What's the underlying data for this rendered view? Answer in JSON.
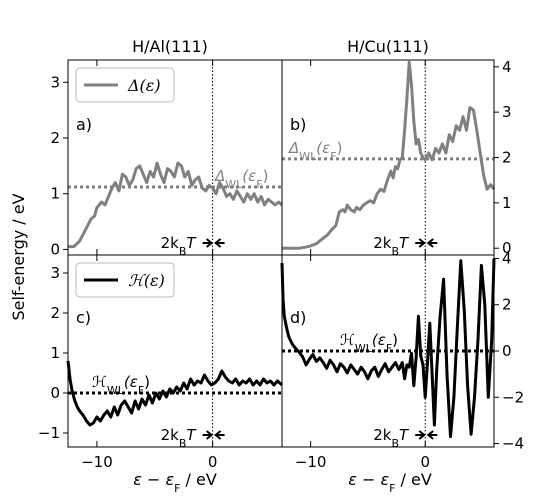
{
  "figure": {
    "ylabel": "Self-energy / eV",
    "xlabel": "ε − ε",
    "xlabel_sub": "F",
    "xlabel_unit": " / eV",
    "col_titles": [
      "H/Al(111)",
      "H/Cu(111)"
    ]
  },
  "chart_data": [
    {
      "type": "line",
      "panel_label": "a)",
      "title": "H/Al(111)",
      "xlim": [
        -12.5,
        6.0
      ],
      "ylim": [
        -0.1,
        3.4
      ],
      "xticks": [
        -10,
        0
      ],
      "yticks": [
        0,
        1,
        2,
        3
      ],
      "ytick_side": "left",
      "series": [
        {
          "name": "Δ(ε)",
          "color": "#808080",
          "x": [
            -12.5,
            -12.0,
            -11.5,
            -11.0,
            -10.5,
            -10.2,
            -10.0,
            -9.6,
            -9.3,
            -9.0,
            -8.7,
            -8.4,
            -8.1,
            -7.8,
            -7.5,
            -7.2,
            -6.9,
            -6.6,
            -6.3,
            -6.0,
            -5.7,
            -5.4,
            -5.1,
            -4.8,
            -4.5,
            -4.2,
            -3.9,
            -3.6,
            -3.3,
            -3.0,
            -2.7,
            -2.4,
            -2.1,
            -1.8,
            -1.5,
            -1.2,
            -0.9,
            -0.6,
            -0.3,
            0.0,
            0.3,
            0.6,
            0.9,
            1.2,
            1.5,
            1.8,
            2.1,
            2.4,
            2.7,
            3.0,
            3.3,
            3.6,
            3.9,
            4.2,
            4.5,
            4.8,
            5.1,
            5.4,
            5.7,
            6.0
          ],
          "y": [
            0.05,
            0.05,
            0.15,
            0.35,
            0.55,
            0.6,
            0.75,
            0.85,
            0.8,
            0.95,
            1.1,
            1.2,
            1.05,
            1.35,
            1.3,
            1.15,
            1.25,
            1.45,
            1.5,
            1.35,
            1.2,
            1.4,
            1.3,
            1.55,
            1.35,
            1.2,
            1.45,
            1.4,
            1.3,
            1.55,
            1.5,
            1.3,
            1.4,
            1.15,
            1.25,
            1.3,
            1.1,
            1.05,
            1.15,
            1.1,
            1.0,
            1.2,
            1.1,
            0.95,
            1.0,
            0.9,
            1.05,
            0.95,
            0.85,
            1.0,
            0.9,
            1.0,
            0.85,
            0.95,
            0.8,
            0.9,
            0.85,
            0.8,
            0.85,
            0.8
          ]
        }
      ],
      "hline": {
        "y": 1.12,
        "label": "Δ",
        "label_sub": "WL",
        "label_arg": "(ε",
        "label_arg_sub": "F",
        "label_close": ")",
        "color": "#808080"
      },
      "legend": {
        "label": "Δ(ε)",
        "placement": "upper-left"
      },
      "kbt": {
        "label": "2k",
        "sub": "B",
        "rest": "T"
      }
    },
    {
      "type": "line",
      "panel_label": "b)",
      "title": "H/Cu(111)",
      "xlim": [
        -12.5,
        6.0
      ],
      "ylim": [
        -0.15,
        4.15
      ],
      "xticks": [
        -10,
        0
      ],
      "yticks": [
        0,
        1,
        2,
        3,
        4
      ],
      "ytick_side": "right",
      "series": [
        {
          "name": "Δ(ε)",
          "color": "#808080",
          "x": [
            -12.5,
            -12.0,
            -11.5,
            -11.0,
            -10.5,
            -10.0,
            -9.5,
            -9.0,
            -8.5,
            -8.2,
            -8.0,
            -7.8,
            -7.5,
            -7.2,
            -7.0,
            -6.8,
            -6.5,
            -6.2,
            -6.0,
            -5.7,
            -5.4,
            -5.1,
            -4.8,
            -4.5,
            -4.2,
            -3.9,
            -3.6,
            -3.3,
            -3.0,
            -2.8,
            -2.6,
            -2.4,
            -2.2,
            -2.0,
            -1.8,
            -1.6,
            -1.4,
            -1.2,
            -1.0,
            -0.8,
            -0.6,
            -0.4,
            -0.2,
            0.0,
            0.3,
            0.6,
            0.9,
            1.2,
            1.5,
            1.8,
            2.1,
            2.4,
            2.7,
            3.0,
            3.3,
            3.6,
            3.9,
            4.2,
            4.5,
            4.8,
            5.1,
            5.4,
            5.7,
            6.0
          ],
          "y": [
            0.0,
            0.0,
            0.0,
            0.0,
            0.02,
            0.05,
            0.1,
            0.2,
            0.3,
            0.4,
            0.45,
            0.5,
            0.8,
            0.85,
            0.8,
            0.95,
            0.85,
            0.8,
            0.9,
            0.85,
            0.95,
            1.0,
            1.05,
            1.0,
            1.2,
            1.3,
            1.25,
            1.5,
            1.7,
            1.55,
            1.8,
            1.75,
            1.95,
            2.0,
            2.6,
            3.3,
            4.1,
            3.6,
            2.8,
            2.3,
            2.4,
            2.1,
            2.0,
            1.95,
            2.1,
            1.95,
            2.2,
            2.1,
            2.3,
            2.1,
            2.5,
            2.35,
            2.7,
            2.6,
            2.9,
            2.6,
            3.1,
            3.05,
            2.6,
            2.1,
            1.6,
            1.3,
            1.4,
            1.3
          ]
        }
      ],
      "hline": {
        "y": 1.97,
        "label": "Δ",
        "label_sub": "WL",
        "label_arg": "(ε",
        "label_arg_sub": "F",
        "label_close": ")",
        "color": "#808080"
      },
      "kbt": {
        "label": "2k",
        "sub": "B",
        "rest": "T"
      }
    },
    {
      "type": "line",
      "panel_label": "c)",
      "xlim": [
        -12.5,
        6.0
      ],
      "ylim": [
        -1.35,
        3.45
      ],
      "xticks": [
        -10,
        0
      ],
      "xticklabels": [
        "−10",
        "0"
      ],
      "yticks": [
        -1,
        0,
        1,
        2,
        3
      ],
      "yticklabels": [
        "−1",
        "0",
        "1",
        "2",
        "3"
      ],
      "ytick_side": "left",
      "series": [
        {
          "name": "ℋ(ε)",
          "color": "#000000",
          "x": [
            -12.5,
            -12.3,
            -12.1,
            -11.9,
            -11.7,
            -11.5,
            -11.2,
            -10.9,
            -10.6,
            -10.3,
            -10.0,
            -9.7,
            -9.4,
            -9.1,
            -8.8,
            -8.5,
            -8.2,
            -7.9,
            -7.6,
            -7.3,
            -7.0,
            -6.7,
            -6.4,
            -6.1,
            -5.8,
            -5.5,
            -5.2,
            -4.9,
            -4.6,
            -4.3,
            -4.0,
            -3.7,
            -3.4,
            -3.1,
            -2.8,
            -2.5,
            -2.2,
            -1.9,
            -1.6,
            -1.3,
            -1.0,
            -0.7,
            -0.4,
            -0.1,
            0.2,
            0.5,
            0.8,
            1.1,
            1.4,
            1.7,
            2.0,
            2.3,
            2.6,
            2.9,
            3.2,
            3.5,
            3.8,
            4.1,
            4.4,
            4.7,
            5.0,
            5.3,
            5.6,
            6.0
          ],
          "y": [
            0.8,
            0.3,
            0.0,
            -0.2,
            -0.35,
            -0.45,
            -0.55,
            -0.7,
            -0.8,
            -0.75,
            -0.6,
            -0.7,
            -0.55,
            -0.45,
            -0.6,
            -0.35,
            -0.55,
            -0.3,
            -0.2,
            -0.35,
            -0.5,
            -0.2,
            -0.4,
            -0.15,
            -0.3,
            -0.05,
            -0.25,
            0.0,
            -0.15,
            0.05,
            -0.1,
            0.1,
            0.0,
            0.15,
            0.05,
            0.25,
            0.1,
            0.35,
            0.2,
            0.3,
            0.25,
            0.45,
            0.3,
            0.2,
            0.25,
            0.35,
            0.55,
            0.4,
            0.3,
            0.25,
            0.35,
            0.2,
            0.3,
            0.25,
            0.35,
            0.2,
            0.3,
            0.2,
            0.35,
            0.25,
            0.3,
            0.2,
            0.3,
            0.2
          ]
        }
      ],
      "hline": {
        "y": 0.0,
        "label": "ℋ",
        "label_sub": "WL",
        "label_arg": "(ε",
        "label_arg_sub": "F",
        "label_close": ")",
        "color": "#000000"
      },
      "legend": {
        "label": "ℋ(ε)",
        "placement": "upper-left"
      },
      "kbt": {
        "label": "2k",
        "sub": "B",
        "rest": "T"
      }
    },
    {
      "type": "line",
      "panel_label": "d)",
      "xlim": [
        -12.5,
        6.0
      ],
      "ylim": [
        -4.15,
        4.15
      ],
      "xticks": [
        -10,
        0
      ],
      "xticklabels": [
        "−10",
        "0"
      ],
      "yticks": [
        -4,
        -2,
        0,
        2,
        4
      ],
      "yticklabels": [
        "−4",
        "−2",
        "0",
        "2",
        "4"
      ],
      "ytick_side": "right",
      "series": [
        {
          "name": "ℋ(ε)",
          "color": "#000000",
          "x": [
            -12.5,
            -12.4,
            -12.3,
            -12.1,
            -11.9,
            -11.6,
            -11.3,
            -11.0,
            -10.7,
            -10.4,
            -10.1,
            -9.8,
            -9.5,
            -9.2,
            -8.9,
            -8.6,
            -8.3,
            -8.0,
            -7.7,
            -7.4,
            -7.1,
            -6.8,
            -6.5,
            -6.2,
            -5.9,
            -5.6,
            -5.3,
            -5.0,
            -4.7,
            -4.4,
            -4.1,
            -3.8,
            -3.5,
            -3.2,
            -2.9,
            -2.6,
            -2.3,
            -2.0,
            -1.8,
            -1.6,
            -1.4,
            -1.2,
            -1.0,
            -0.8,
            -0.6,
            -0.4,
            -0.2,
            0.0,
            0.2,
            0.4,
            0.6,
            0.8,
            1.0,
            1.3,
            1.6,
            1.9,
            2.2,
            2.5,
            2.8,
            3.1,
            3.4,
            3.7,
            4.0,
            4.3,
            4.6,
            4.9,
            5.2,
            5.5,
            5.8,
            6.0
          ],
          "y": [
            3.8,
            2.2,
            1.5,
            1.0,
            0.6,
            0.3,
            0.1,
            -0.05,
            -0.25,
            -0.6,
            -0.35,
            -0.15,
            -0.45,
            -0.3,
            -0.5,
            -0.75,
            -0.4,
            -0.6,
            -0.9,
            -0.55,
            -0.7,
            -0.95,
            -0.6,
            -0.8,
            -1.0,
            -0.7,
            -0.9,
            -1.2,
            -0.85,
            -0.7,
            -1.1,
            -0.8,
            -0.55,
            -0.9,
            -0.7,
            -0.5,
            -0.8,
            -0.5,
            -1.2,
            -0.6,
            -0.7,
            -0.1,
            -1.5,
            -0.3,
            1.5,
            -0.2,
            -0.6,
            -2.0,
            -0.5,
            1.2,
            -1.0,
            -3.2,
            -0.8,
            1.5,
            3.1,
            -1.0,
            -3.7,
            -2.0,
            1.0,
            3.9,
            1.8,
            -1.5,
            -3.6,
            -2.0,
            0.5,
            3.7,
            2.0,
            -2.0,
            0.5,
            4.0
          ]
        }
      ],
      "hline": {
        "y": 0.0,
        "label": "ℋ",
        "label_sub": "WL",
        "label_arg": "(ε",
        "label_arg_sub": "F",
        "label_close": ")",
        "color": "#000000"
      },
      "kbt": {
        "label": "2k",
        "sub": "B",
        "rest": "T"
      }
    }
  ]
}
